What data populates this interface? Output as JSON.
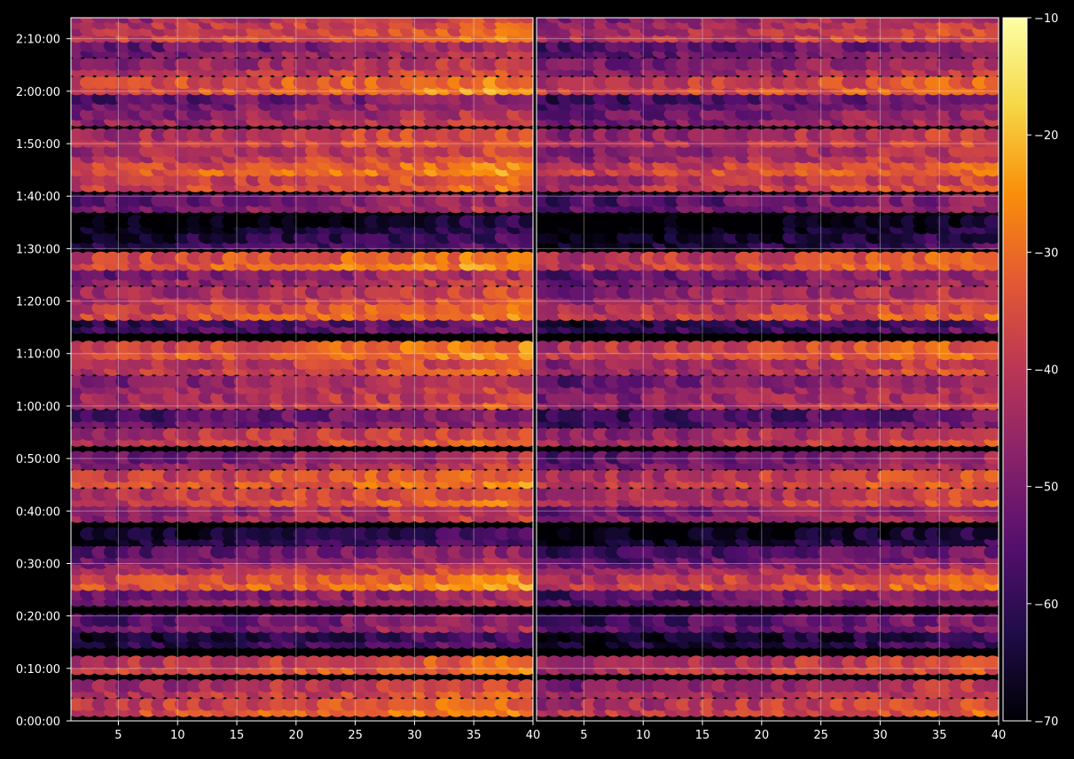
{
  "chart_data": {
    "type": "heatmap",
    "title": "",
    "xlabel": "",
    "ylabel": "",
    "panels": [
      {
        "name": "",
        "x_range": [
          1,
          40
        ]
      },
      {
        "name": "",
        "x_range": [
          1,
          40
        ]
      }
    ],
    "x_ticks": [
      "5",
      "10",
      "15",
      "20",
      "25",
      "30",
      "35",
      "40"
    ],
    "x_tick_values": [
      5,
      10,
      15,
      20,
      25,
      30,
      35,
      40
    ],
    "y_ticks": [
      "0:00:00",
      "0:10:00",
      "0:20:00",
      "0:30:00",
      "0:40:00",
      "0:50:00",
      "1:00:00",
      "1:10:00",
      "1:20:00",
      "1:30:00",
      "1:40:00",
      "1:50:00",
      "2:00:00",
      "2:10:00"
    ],
    "y_tick_values_sec": [
      0,
      600,
      1200,
      1800,
      2400,
      3000,
      3600,
      4200,
      4800,
      5400,
      6000,
      6600,
      7200,
      7800
    ],
    "ylim_sec": [
      0,
      8040
    ],
    "colorbar": {
      "colormap": "inferno",
      "range": [
        -70,
        -10
      ],
      "ticks": [
        "−70",
        "−60",
        "−50",
        "−40",
        "−30",
        "−20",
        "−10"
      ],
      "tick_values": [
        -70,
        -60,
        -50,
        -40,
        -30,
        -20,
        -10
      ]
    },
    "grid": true,
    "x": [
      1,
      2,
      3,
      4,
      5,
      6,
      7,
      8,
      9,
      10,
      11,
      12,
      13,
      14,
      15,
      16,
      17,
      18,
      19,
      20,
      21,
      22,
      23,
      24,
      25,
      26,
      27,
      28,
      29,
      30,
      31,
      32,
      33,
      34,
      35,
      36,
      37,
      38,
      39
    ],
    "time_levels_sec": [
      120,
      330,
      600,
      900,
      1080,
      1380,
      1560,
      1740,
      1860,
      2070,
      2340,
      2520,
      2730,
      2940,
      3210,
      3420,
      3630,
      3810,
      4020,
      4200,
      4500,
      4650,
      4830,
      5040,
      5220,
      5460,
      5640,
      5880,
      6120,
      6300,
      6450,
      6630,
      6870,
      7050,
      7230,
      7440,
      7650,
      7830,
      7980
    ],
    "level_mean_dB": [
      -32,
      -38,
      -34,
      -58,
      -48,
      -46,
      -30,
      -40,
      -48,
      -60,
      -42,
      -34,
      -32,
      -44,
      -36,
      -50,
      -38,
      -42,
      -36,
      -30,
      -54,
      -32,
      -38,
      -44,
      -30,
      -58,
      -64,
      -46,
      -34,
      -30,
      -38,
      -36,
      -42,
      -48,
      -30,
      -40,
      -46,
      -34,
      -38
    ],
    "x_gain_dB_per_col": 0.28,
    "right_panel_offset_dB": -4
  }
}
